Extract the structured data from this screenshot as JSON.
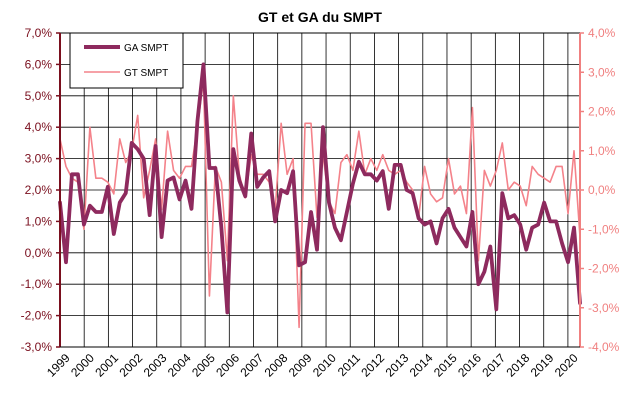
{
  "chart_data": {
    "type": "line",
    "title": "GT et GA du SMPT",
    "x_labels": [
      "1999",
      "2000",
      "2001",
      "2002",
      "2003",
      "2004",
      "2005",
      "2006",
      "2007",
      "2008",
      "2009",
      "2010",
      "2011",
      "2012",
      "2013",
      "2014",
      "2015",
      "2016",
      "2017",
      "2018",
      "2019",
      "2020"
    ],
    "left_axis": {
      "ylim": [
        -3.0,
        7.0
      ],
      "ticks": [
        -3.0,
        -2.0,
        -1.0,
        0.0,
        1.0,
        2.0,
        3.0,
        4.0,
        5.0,
        6.0,
        7.0
      ],
      "tick_labels": [
        "-3,0%",
        "-2,0%",
        "-1,0%",
        "0,0%",
        "1,0%",
        "2,0%",
        "3,0%",
        "4,0%",
        "5,0%",
        "6,0%",
        "7,0%"
      ],
      "color": "#7a0f1e"
    },
    "right_axis": {
      "ylim": [
        -4.0,
        4.0
      ],
      "ticks": [
        -4,
        -3,
        -2,
        -1,
        0,
        1,
        2,
        3,
        4
      ],
      "tick_labels": [
        "-4,0%",
        "-3,0%",
        "-2,0%",
        "-1,0%",
        "0,0%",
        "1,0%",
        "2,0%",
        "3,0%",
        "4,0%"
      ],
      "color": "#f08080"
    },
    "legend_position": "top-left",
    "grid": true,
    "series": [
      {
        "name": "GA SMPT",
        "axis": "left",
        "color": "#8e2a5e",
        "values": [
          1.6,
          -0.3,
          2.5,
          2.5,
          0.9,
          1.5,
          1.3,
          1.3,
          2.1,
          0.6,
          1.6,
          1.9,
          3.5,
          3.3,
          3.0,
          1.2,
          3.4,
          0.5,
          2.3,
          2.4,
          1.7,
          2.3,
          1.4,
          4.2,
          6.0,
          2.7,
          2.7,
          0.8,
          -1.9,
          3.3,
          2.3,
          1.8,
          3.8,
          2.1,
          2.4,
          2.6,
          1.0,
          2.0,
          1.9,
          2.6,
          -0.4,
          -0.3,
          1.3,
          0.1,
          4.0,
          1.6,
          0.8,
          0.4,
          1.3,
          2.2,
          2.9,
          2.5,
          2.5,
          2.3,
          2.6,
          1.4,
          2.8,
          2.8,
          2.0,
          1.9,
          1.1,
          0.9,
          1.0,
          0.3,
          1.1,
          1.4,
          0.8,
          0.5,
          0.2,
          1.3,
          -1.0,
          -0.6,
          0.2,
          -1.8,
          1.9,
          1.1,
          1.2,
          0.9,
          0.1,
          0.8,
          0.9,
          1.6,
          1.0,
          1.0,
          0.3,
          -0.3,
          0.8,
          -1.6
        ]
      },
      {
        "name": "GT SMPT",
        "axis": "right",
        "color": "#f4828a",
        "values": [
          1.3,
          0.6,
          0.3,
          0.2,
          -1.0,
          1.6,
          0.3,
          0.3,
          0.2,
          -0.1,
          1.3,
          0.7,
          1.0,
          1.9,
          -0.2,
          0.5,
          1.3,
          -0.5,
          1.5,
          0.5,
          0.3,
          0.6,
          0.6,
          1.6,
          2.8,
          -2.7,
          0.6,
          0.2,
          -1.8,
          2.4,
          0.4,
          -0.2,
          0.9,
          0.4,
          0.4,
          0.2,
          -0.5,
          1.7,
          0.4,
          0.8,
          -3.5,
          1.7,
          1.7,
          -0.7,
          0.9,
          -0.3,
          -0.6,
          0.7,
          0.9,
          0.5,
          1.5,
          0.4,
          0.8,
          0.5,
          0.9,
          0.5,
          0.4,
          0.5,
          0.2,
          0.0,
          -0.7,
          0.6,
          -0.1,
          -0.3,
          -0.2,
          0.8,
          -0.1,
          0.1,
          -0.6,
          2.1,
          -1.8,
          0.5,
          0.1,
          0.5,
          1.2,
          0.0,
          0.2,
          0.1,
          -0.4,
          0.6,
          0.4,
          0.3,
          0.2,
          0.6,
          0.6,
          -0.6,
          1.0,
          -1.2
        ]
      }
    ]
  }
}
